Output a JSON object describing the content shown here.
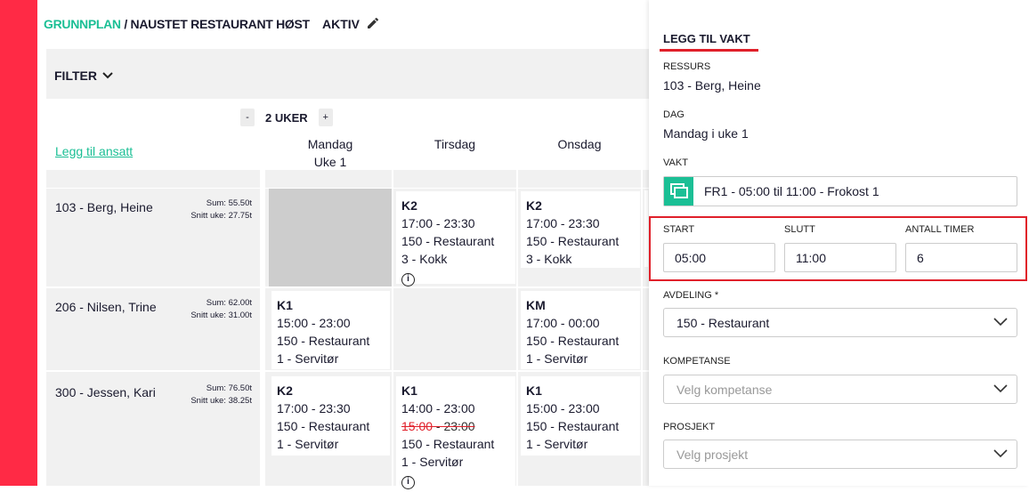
{
  "header": {
    "crumb_root": "GRUNNPLAN",
    "crumb_sep": " / ",
    "crumb_current": "NAUSTET RESTAURANT HØST",
    "status": "AKTIV"
  },
  "filter": {
    "label": "FILTER"
  },
  "weeks": {
    "minus": "-",
    "label": "2 UKER",
    "plus": "+"
  },
  "add_employee": "Legg til ansatt",
  "days": [
    {
      "name": "Mandag",
      "sub": "Uke 1"
    },
    {
      "name": "Tirsdag",
      "sub": ""
    },
    {
      "name": "Onsdag",
      "sub": ""
    }
  ],
  "rows": [
    {
      "name": "103 - Berg, Heine",
      "sum": "Sum: 55.50t",
      "avg": "Snitt uke: 27.75t",
      "shifts": [
        null,
        {
          "code": "K2",
          "time": "17:00 - 23:30",
          "dept": "150 - Restaurant",
          "role": "3 - Kokk",
          "info": true
        },
        {
          "code": "K2",
          "time": "17:00 - 23:30",
          "dept": "150 - Restaurant",
          "role": "3 - Kokk"
        }
      ]
    },
    {
      "name": "206 - Nilsen, Trine",
      "sum": "Sum: 62.00t",
      "avg": "Snitt uke: 31.00t",
      "shifts": [
        {
          "code": "K1",
          "time": "15:00 - 23:00",
          "dept": "150 - Restaurant",
          "role": "1 - Servitør"
        },
        null,
        {
          "code": "KM",
          "time": "17:00 - 00:00",
          "dept": "150 - Restaurant",
          "role": "1 - Servitør"
        }
      ]
    },
    {
      "name": "300 - Jessen, Kari",
      "sum": "Sum: 76.50t",
      "avg": "Snitt uke: 38.25t",
      "shifts": [
        {
          "code": "K2",
          "time": "17:00 - 23:30",
          "dept": "150 - Restaurant",
          "role": "1 - Servitør"
        },
        {
          "code": "K1",
          "time": "14:00 - 23:00",
          "old_start": "15:00",
          "old_end": " - 23:00",
          "dept": "150 - Restaurant",
          "role": "1 - Servitør",
          "info": true
        },
        {
          "code": "K1",
          "time": "15:00 - 23:00",
          "dept": "150 - Restaurant",
          "role": "1 - Servitør"
        }
      ]
    }
  ],
  "panel": {
    "title": "LEGG TIL VAKT",
    "ressurs_label": "RESSURS",
    "ressurs": "103 - Berg, Heine",
    "dag_label": "DAG",
    "dag": "Mandag i uke 1",
    "vakt_label": "VAKT",
    "vakt": "FR1 - 05:00 til 11:00 - Frokost 1",
    "start_label": "START",
    "start": "05:00",
    "slutt_label": "SLUTT",
    "slutt": "11:00",
    "timer_label": "ANTALL TIMER",
    "timer": "6",
    "avdeling_label": "AVDELING *",
    "avdeling": "150 - Restaurant",
    "kompetanse_label": "KOMPETANSE",
    "kompetanse_placeholder": "Velg kompetanse",
    "prosjekt_label": "PROSJEKT",
    "prosjekt_placeholder": "Velg prosjekt"
  },
  "colors": {
    "accent": "#1bbf95",
    "brand": "#ff2a45",
    "highlight": "#e0202a"
  }
}
